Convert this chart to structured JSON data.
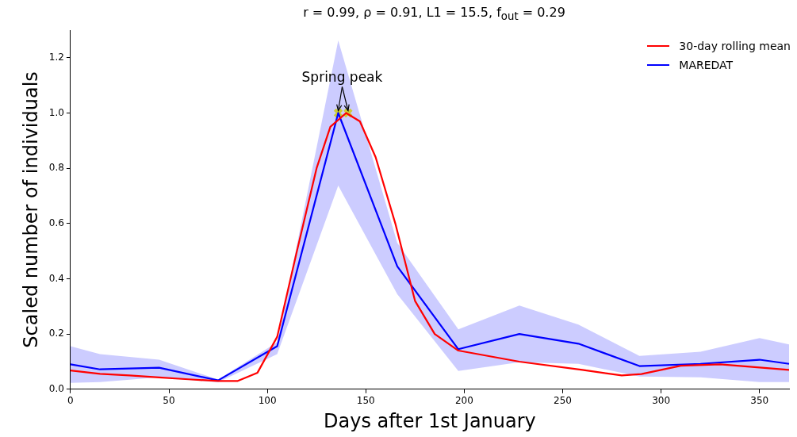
{
  "chart_data": {
    "type": "line",
    "title": "r = 0.99, ρ = 0.91, L1 = 15.5, f$_{out}$ = 0.29",
    "xlabel": "Days after 1st January",
    "ylabel": "Scaled number of individuals",
    "xlim": [
      0,
      365
    ],
    "xticks": [
      0,
      50,
      100,
      150,
      200,
      250,
      300,
      350
    ],
    "ylim": [
      0,
      1.3
    ],
    "yticks": [
      {
        "value": 0,
        "label": "0.0"
      },
      {
        "value": 0.2,
        "label": "0.2"
      },
      {
        "value": 0.4,
        "label": "0.4"
      },
      {
        "value": 0.6,
        "label": "0.6"
      },
      {
        "value": 0.8,
        "label": "0.8"
      },
      {
        "value": 1.0,
        "label": "1.0"
      },
      {
        "value": 1.2,
        "label": "1.2"
      }
    ],
    "grid": false,
    "legend": "top right",
    "line_style": "solid",
    "marker": "none",
    "series": [
      {
        "name": "30-day rolling mean",
        "color": "#ff0000",
        "x": [
          0,
          15,
          30,
          45,
          60,
          75,
          85,
          95,
          105,
          115,
          125,
          132,
          140,
          147,
          155,
          165,
          175,
          185,
          197,
          228,
          260,
          280,
          290,
          310,
          330,
          365
        ],
        "values": [
          0.068,
          0.056,
          0.05,
          0.043,
          0.036,
          0.03,
          0.03,
          0.06,
          0.19,
          0.5,
          0.8,
          0.95,
          1.0,
          0.97,
          0.84,
          0.6,
          0.32,
          0.2,
          0.14,
          0.1,
          0.07,
          0.05,
          0.055,
          0.085,
          0.09,
          0.07
        ]
      },
      {
        "name": "MAREDAT",
        "color": "#0000ff",
        "x": [
          0,
          15,
          45,
          75,
          105,
          136,
          166,
          197,
          228,
          258,
          289,
          320,
          350,
          365
        ],
        "values": [
          0.09,
          0.072,
          0.078,
          0.032,
          0.156,
          1.0,
          0.445,
          0.145,
          0.2,
          0.165,
          0.084,
          0.092,
          0.107,
          0.092
        ],
        "lower": [
          0.023,
          0.026,
          0.043,
          0.025,
          0.127,
          0.737,
          0.344,
          0.066,
          0.098,
          0.092,
          0.046,
          0.043,
          0.026,
          0.026
        ],
        "upper": [
          0.156,
          0.127,
          0.107,
          0.035,
          0.17,
          1.263,
          0.53,
          0.217,
          0.303,
          0.234,
          0.121,
          0.136,
          0.185,
          0.162
        ]
      },
      {
        "type": "scatter",
        "color": "#ffff00",
        "marker": "cross",
        "x": [
          136,
          141
        ],
        "values": [
          1.0,
          1.0
        ]
      }
    ],
    "annotations": [
      {
        "text": "Spring peak",
        "x": 138,
        "y": 1.0
      }
    ]
  }
}
